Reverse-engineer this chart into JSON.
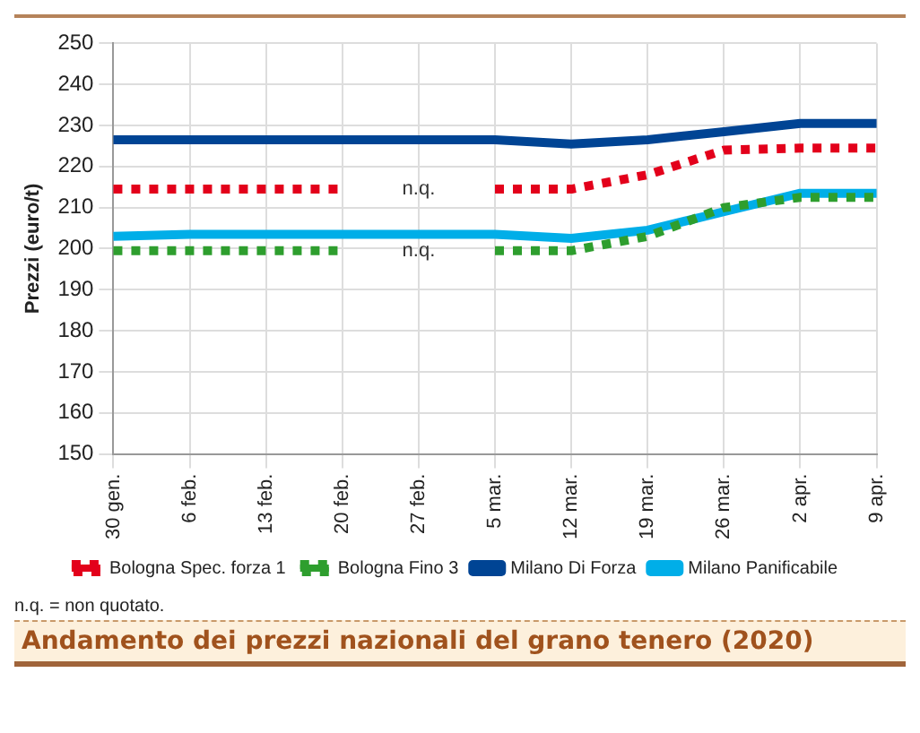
{
  "chart_data": {
    "type": "line",
    "title": "Andamento dei prezzi nazionali del grano tenero (2020)",
    "ylabel": "Prezzi (euro/t)",
    "categories": [
      "30 gen.",
      "6 feb.",
      "13 feb.",
      "20 feb.",
      "27 feb.",
      "5 mar.",
      "12 mar.",
      "19 mar.",
      "26 mar.",
      "2 apr.",
      "9 apr."
    ],
    "series": [
      {
        "name": "Bologna Spec. forza 1",
        "color": "#e3001b",
        "line_style": "dotted",
        "values": [
          214.5,
          214.5,
          214.5,
          214.5,
          null,
          214.5,
          214.5,
          218,
          224,
          224.5,
          224.5
        ]
      },
      {
        "name": "Bologna Fino 3",
        "color": "#2e9e2e",
        "line_style": "dotted",
        "values": [
          199.5,
          199.5,
          199.5,
          199.5,
          null,
          199.5,
          199.5,
          203,
          210,
          212.5,
          212.5
        ]
      },
      {
        "name": "Milano Di Forza",
        "color": "#004494",
        "line_style": "solid",
        "values": [
          226.5,
          226.5,
          226.5,
          226.5,
          226.5,
          226.5,
          225.5,
          226.5,
          228.5,
          230.5,
          230.5
        ]
      },
      {
        "name": "Milano Panificabile",
        "color": "#00aee8",
        "line_style": "solid",
        "values": [
          203,
          203.5,
          203.5,
          203.5,
          203.5,
          203.5,
          202.5,
          204.5,
          209,
          213.5,
          213.5
        ]
      }
    ],
    "ylim": [
      150,
      250
    ],
    "yticks": [
      150,
      160,
      170,
      180,
      190,
      200,
      210,
      220,
      230,
      240,
      250
    ],
    "grid": true,
    "legend": "bottom",
    "marker": "none",
    "annotations": [
      "n.q.",
      "n.q.",
      "n.q. = non quotato."
    ]
  }
}
